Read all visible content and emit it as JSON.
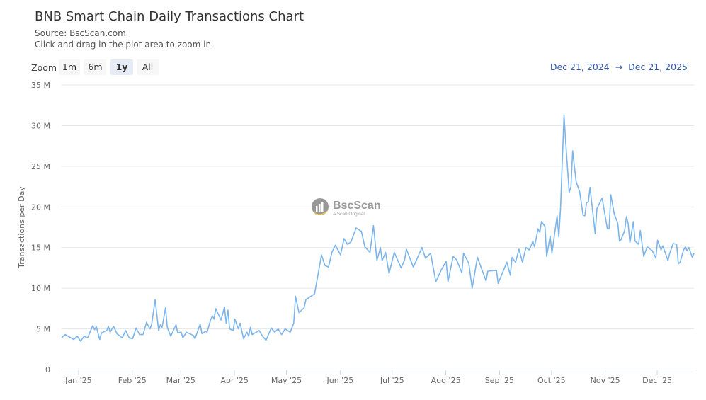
{
  "header": {
    "title": "BNB Smart Chain Daily Transactions Chart",
    "source": "Source: BscScan.com",
    "hint": "Click and drag in the plot area to zoom in"
  },
  "zoom": {
    "label": "Zoom",
    "buttons": [
      {
        "label": "1m",
        "active": false
      },
      {
        "label": "6m",
        "active": false
      },
      {
        "label": "1y",
        "active": true
      },
      {
        "label": "All",
        "active": false
      }
    ]
  },
  "range": {
    "from": "Dec 21, 2024",
    "arrow": "→",
    "to": "Dec 21, 2025"
  },
  "watermark": {
    "brand": "BscScan",
    "tagline": "A Scan Original"
  },
  "colors": {
    "line": "#7cb5ec",
    "grid": "#e6e6e6",
    "range_text": "#335cad"
  },
  "chart_data": {
    "type": "line",
    "title": "BNB Smart Chain Daily Transactions Chart",
    "subtitle": "Source: BscScan.com",
    "xlabel": "",
    "ylabel": "Transactions per Day",
    "xlim": [
      "2024-12-21",
      "2025-12-21"
    ],
    "ylim": [
      0,
      35000000
    ],
    "yticks": [
      {
        "value": 0,
        "label": "0"
      },
      {
        "value": 5000000,
        "label": "5 M"
      },
      {
        "value": 10000000,
        "label": "10 M"
      },
      {
        "value": 15000000,
        "label": "15 M"
      },
      {
        "value": 20000000,
        "label": "20 M"
      },
      {
        "value": 25000000,
        "label": "25 M"
      },
      {
        "value": 30000000,
        "label": "30 M"
      },
      {
        "value": 35000000,
        "label": "35 M"
      }
    ],
    "xticks": [
      {
        "date": "2025-01-01",
        "label": "Jan '25"
      },
      {
        "date": "2025-02-01",
        "label": "Feb '25"
      },
      {
        "date": "2025-03-01",
        "label": "Mar '25"
      },
      {
        "date": "2025-04-01",
        "label": "Apr '25"
      },
      {
        "date": "2025-05-01",
        "label": "May '25"
      },
      {
        "date": "2025-06-01",
        "label": "Jun '25"
      },
      {
        "date": "2025-07-01",
        "label": "Jul '25"
      },
      {
        "date": "2025-08-01",
        "label": "Aug '25"
      },
      {
        "date": "2025-09-01",
        "label": "Sep '25"
      },
      {
        "date": "2025-10-01",
        "label": "Oct '25"
      },
      {
        "date": "2025-11-01",
        "label": "Nov '25"
      },
      {
        "date": "2025-12-01",
        "label": "Dec '25"
      }
    ],
    "grid": true,
    "legend": "none",
    "series": [
      {
        "unit": "M transactions",
        "points": [
          [
            "2024-12-21",
            3.9
          ],
          [
            "2024-12-23",
            4.3
          ],
          [
            "2024-12-28",
            3.7
          ],
          [
            "2024-12-30",
            4.1
          ],
          [
            "2025-01-01",
            3.5
          ],
          [
            "2025-01-03",
            4.1
          ],
          [
            "2025-01-05",
            3.9
          ],
          [
            "2025-01-08",
            5.4
          ],
          [
            "2025-01-09",
            4.9
          ],
          [
            "2025-01-10",
            5.3
          ],
          [
            "2025-01-12",
            3.7
          ],
          [
            "2025-01-13",
            4.5
          ],
          [
            "2025-01-16",
            4.8
          ],
          [
            "2025-01-17",
            5.3
          ],
          [
            "2025-01-18",
            4.6
          ],
          [
            "2025-01-20",
            5.3
          ],
          [
            "2025-01-22",
            4.4
          ],
          [
            "2025-01-25",
            3.9
          ],
          [
            "2025-01-27",
            4.8
          ],
          [
            "2025-01-29",
            3.9
          ],
          [
            "2025-01-31",
            3.8
          ],
          [
            "2025-02-02",
            5.1
          ],
          [
            "2025-02-04",
            4.3
          ],
          [
            "2025-02-06",
            4.3
          ],
          [
            "2025-02-08",
            5.8
          ],
          [
            "2025-02-10",
            5.0
          ],
          [
            "2025-02-11",
            5.6
          ],
          [
            "2025-02-13",
            8.6
          ],
          [
            "2025-02-15",
            4.8
          ],
          [
            "2025-02-16",
            5.5
          ],
          [
            "2025-02-17",
            5.2
          ],
          [
            "2025-02-19",
            7.6
          ],
          [
            "2025-02-20",
            5.2
          ],
          [
            "2025-02-22",
            4.1
          ],
          [
            "2025-02-25",
            5.5
          ],
          [
            "2025-02-26",
            4.5
          ],
          [
            "2025-02-28",
            4.6
          ],
          [
            "2025-03-01",
            3.9
          ],
          [
            "2025-03-03",
            4.6
          ],
          [
            "2025-03-07",
            4.2
          ],
          [
            "2025-03-08",
            3.8
          ],
          [
            "2025-03-11",
            5.6
          ],
          [
            "2025-03-12",
            4.4
          ],
          [
            "2025-03-14",
            4.7
          ],
          [
            "2025-03-15",
            4.6
          ],
          [
            "2025-03-17",
            6.1
          ],
          [
            "2025-03-18",
            6.6
          ],
          [
            "2025-03-19",
            6.2
          ],
          [
            "2025-03-20",
            7.5
          ],
          [
            "2025-03-23",
            6.1
          ],
          [
            "2025-03-25",
            7.7
          ],
          [
            "2025-03-26",
            5.7
          ],
          [
            "2025-03-27",
            7.3
          ],
          [
            "2025-03-28",
            5.0
          ],
          [
            "2025-03-30",
            4.8
          ],
          [
            "2025-03-31",
            6.2
          ],
          [
            "2025-04-02",
            5.0
          ],
          [
            "2025-04-03",
            5.7
          ],
          [
            "2025-04-05",
            3.8
          ],
          [
            "2025-04-07",
            4.6
          ],
          [
            "2025-04-08",
            4.1
          ],
          [
            "2025-04-09",
            5.2
          ],
          [
            "2025-04-10",
            4.3
          ],
          [
            "2025-04-14",
            4.8
          ],
          [
            "2025-04-16",
            4.1
          ],
          [
            "2025-04-18",
            3.6
          ],
          [
            "2025-04-21",
            5.1
          ],
          [
            "2025-04-23",
            4.6
          ],
          [
            "2025-04-25",
            5.0
          ],
          [
            "2025-04-27",
            4.3
          ],
          [
            "2025-04-29",
            5.0
          ],
          [
            "2025-05-02",
            4.6
          ],
          [
            "2025-05-04",
            5.7
          ],
          [
            "2025-05-05",
            9.0
          ],
          [
            "2025-05-07",
            7.0
          ],
          [
            "2025-05-10",
            7.6
          ],
          [
            "2025-05-11",
            8.6
          ],
          [
            "2025-05-16",
            9.3
          ],
          [
            "2025-05-20",
            14.1
          ],
          [
            "2025-05-22",
            12.8
          ],
          [
            "2025-05-24",
            12.6
          ],
          [
            "2025-05-26",
            14.4
          ],
          [
            "2025-05-28",
            15.3
          ],
          [
            "2025-05-31",
            14.1
          ],
          [
            "2025-06-02",
            16.1
          ],
          [
            "2025-06-04",
            15.4
          ],
          [
            "2025-06-06",
            15.7
          ],
          [
            "2025-06-09",
            17.4
          ],
          [
            "2025-06-12",
            17.0
          ],
          [
            "2025-06-14",
            15.1
          ],
          [
            "2025-06-17",
            14.4
          ],
          [
            "2025-06-19",
            17.7
          ],
          [
            "2025-06-21",
            13.4
          ],
          [
            "2025-06-23",
            15.0
          ],
          [
            "2025-06-24",
            13.4
          ],
          [
            "2025-06-26",
            14.4
          ],
          [
            "2025-06-28",
            11.8
          ],
          [
            "2025-07-01",
            14.4
          ],
          [
            "2025-07-05",
            12.5
          ],
          [
            "2025-07-07",
            13.5
          ],
          [
            "2025-07-08",
            14.8
          ],
          [
            "2025-07-12",
            12.6
          ],
          [
            "2025-07-17",
            15.0
          ],
          [
            "2025-07-19",
            13.7
          ],
          [
            "2025-07-22",
            14.3
          ],
          [
            "2025-07-25",
            10.8
          ],
          [
            "2025-07-28",
            12.2
          ],
          [
            "2025-07-31",
            13.3
          ],
          [
            "2025-08-01",
            10.8
          ],
          [
            "2025-08-04",
            13.9
          ],
          [
            "2025-08-06",
            13.5
          ],
          [
            "2025-08-09",
            11.9
          ],
          [
            "2025-08-10",
            14.3
          ],
          [
            "2025-08-13",
            13.1
          ],
          [
            "2025-08-15",
            10.0
          ],
          [
            "2025-08-18",
            13.8
          ],
          [
            "2025-08-23",
            10.9
          ],
          [
            "2025-08-24",
            12.1
          ],
          [
            "2025-08-29",
            12.2
          ],
          [
            "2025-08-30",
            10.6
          ],
          [
            "2025-09-04",
            13.2
          ],
          [
            "2025-09-06",
            11.6
          ],
          [
            "2025-09-07",
            13.8
          ],
          [
            "2025-09-09",
            13.2
          ],
          [
            "2025-09-11",
            14.8
          ],
          [
            "2025-09-13",
            13.2
          ],
          [
            "2025-09-15",
            15.0
          ],
          [
            "2025-09-17",
            14.7
          ],
          [
            "2025-09-19",
            15.8
          ],
          [
            "2025-09-20",
            15.1
          ],
          [
            "2025-09-22",
            17.3
          ],
          [
            "2025-09-23",
            16.9
          ],
          [
            "2025-09-24",
            18.2
          ],
          [
            "2025-09-26",
            17.6
          ],
          [
            "2025-09-27",
            13.9
          ],
          [
            "2025-09-29",
            16.4
          ],
          [
            "2025-09-30",
            14.3
          ],
          [
            "2025-10-03",
            18.9
          ],
          [
            "2025-10-04",
            16.3
          ],
          [
            "2025-10-05",
            19.9
          ],
          [
            "2025-10-07",
            31.3
          ],
          [
            "2025-10-08",
            27.8
          ],
          [
            "2025-10-10",
            21.8
          ],
          [
            "2025-10-11",
            22.5
          ],
          [
            "2025-10-12",
            26.9
          ],
          [
            "2025-10-14",
            23.1
          ],
          [
            "2025-10-16",
            21.9
          ],
          [
            "2025-10-18",
            19.0
          ],
          [
            "2025-10-19",
            18.9
          ],
          [
            "2025-10-20",
            20.5
          ],
          [
            "2025-10-21",
            20.6
          ],
          [
            "2025-10-22",
            22.4
          ],
          [
            "2025-10-25",
            16.7
          ],
          [
            "2025-10-26",
            19.8
          ],
          [
            "2025-10-29",
            21.1
          ],
          [
            "2025-11-01",
            17.3
          ],
          [
            "2025-11-02",
            17.3
          ],
          [
            "2025-11-03",
            21.5
          ],
          [
            "2025-11-05",
            19.1
          ],
          [
            "2025-11-07",
            18.0
          ],
          [
            "2025-11-08",
            15.8
          ],
          [
            "2025-11-09",
            16.0
          ],
          [
            "2025-11-11",
            17.1
          ],
          [
            "2025-11-12",
            18.8
          ],
          [
            "2025-11-13",
            18.0
          ],
          [
            "2025-11-14",
            15.6
          ],
          [
            "2025-11-16",
            18.2
          ],
          [
            "2025-11-17",
            15.8
          ],
          [
            "2025-11-19",
            15.4
          ],
          [
            "2025-11-20",
            17.1
          ],
          [
            "2025-11-22",
            13.9
          ],
          [
            "2025-11-24",
            15.1
          ],
          [
            "2025-11-27",
            14.6
          ],
          [
            "2025-11-29",
            13.7
          ],
          [
            "2025-11-30",
            15.9
          ],
          [
            "2025-12-02",
            14.7
          ],
          [
            "2025-12-03",
            15.2
          ],
          [
            "2025-12-06",
            13.4
          ],
          [
            "2025-12-07",
            14.3
          ],
          [
            "2025-12-09",
            15.5
          ],
          [
            "2025-12-11",
            15.4
          ],
          [
            "2025-12-12",
            13.0
          ],
          [
            "2025-12-13",
            13.2
          ],
          [
            "2025-12-15",
            14.7
          ],
          [
            "2025-12-16",
            15.1
          ],
          [
            "2025-12-17",
            14.6
          ],
          [
            "2025-12-18",
            15.0
          ],
          [
            "2025-12-20",
            13.8
          ],
          [
            "2025-12-21",
            14.3
          ]
        ]
      }
    ]
  }
}
